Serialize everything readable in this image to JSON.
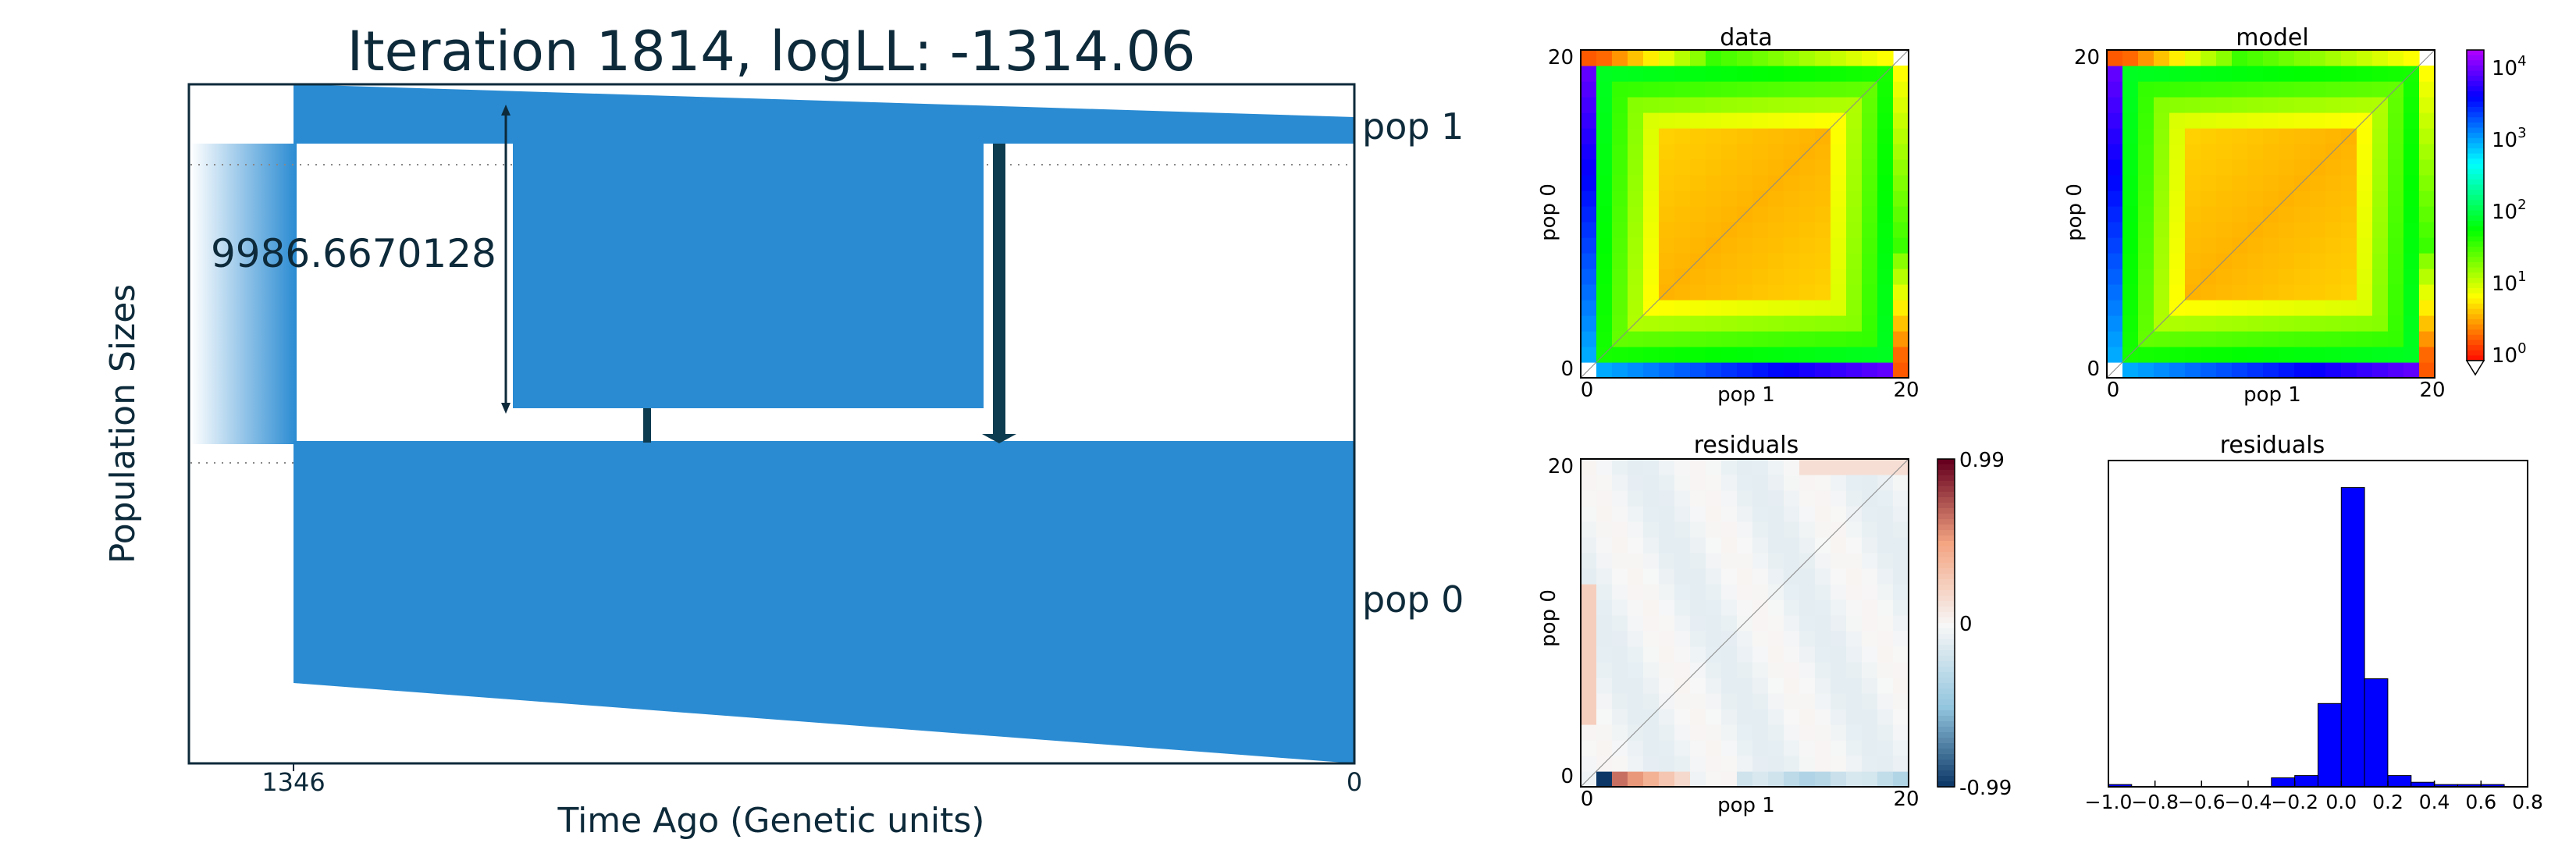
{
  "demography": {
    "title": "Iteration 1814, logLL:   -1314.06",
    "ylabel": "Population Sizes",
    "xlabel": "Time Ago (Genetic units)",
    "size_annotation": "9986.6670128",
    "pop_labels": [
      "pop 1",
      "pop 0"
    ],
    "x_ticks": [
      "1346",
      "0"
    ],
    "colors": {
      "population": "#2a8bd2",
      "migration": "#0d3b4f",
      "text": "#0d2a3a"
    }
  },
  "chart_data": [
    {
      "type": "heatmap",
      "title": "data",
      "xlabel": "pop 1",
      "ylabel": "pop 0",
      "x_ticks": [
        "0",
        "20"
      ],
      "y_ticks": [
        "0",
        "20"
      ],
      "grid_size": 21,
      "colormap": "hsv-log",
      "color_range": [
        1,
        10000
      ]
    },
    {
      "type": "heatmap",
      "title": "model",
      "xlabel": "pop 1",
      "ylabel": "pop 0",
      "x_ticks": [
        "0",
        "20"
      ],
      "y_ticks": [
        "0",
        "20"
      ],
      "grid_size": 21,
      "colormap": "hsv-log",
      "colorbar_ticks": [
        "10⁴",
        "10³",
        "10²",
        "10¹",
        "10⁰"
      ],
      "colorbar_ticks_text": [
        {
          "base": "10",
          "exp": "4"
        },
        {
          "base": "10",
          "exp": "3"
        },
        {
          "base": "10",
          "exp": "2"
        },
        {
          "base": "10",
          "exp": "1"
        },
        {
          "base": "10",
          "exp": "0"
        }
      ]
    },
    {
      "type": "heatmap",
      "title": "residuals",
      "xlabel": "pop 1",
      "ylabel": "pop 0",
      "x_ticks": [
        "0",
        "20"
      ],
      "y_ticks": [
        "0",
        "20"
      ],
      "grid_size": 21,
      "colormap": "RdBu",
      "colorbar_ticks": [
        "0.99",
        "0",
        "-0.99"
      ],
      "color_range": [
        -0.99,
        0.99
      ]
    },
    {
      "type": "bar",
      "title": "residuals",
      "x_ticks": [
        "−1.0",
        "−0.8",
        "−0.6",
        "−0.4",
        "−0.2",
        "0.0",
        "0.2",
        "0.4",
        "0.6",
        "0.8"
      ],
      "xlim": [
        -1.0,
        0.8
      ],
      "bin_width": 0.1,
      "bin_left_edges": [
        -1.0,
        -0.3,
        -0.2,
        -0.1,
        0.0,
        0.1,
        0.2,
        0.3,
        0.4,
        0.5,
        0.6
      ],
      "counts": [
        1,
        4,
        5,
        37,
        133,
        48,
        5,
        2,
        1,
        1,
        1
      ],
      "ylim": [
        0,
        145
      ],
      "color": "#0000ff"
    }
  ]
}
